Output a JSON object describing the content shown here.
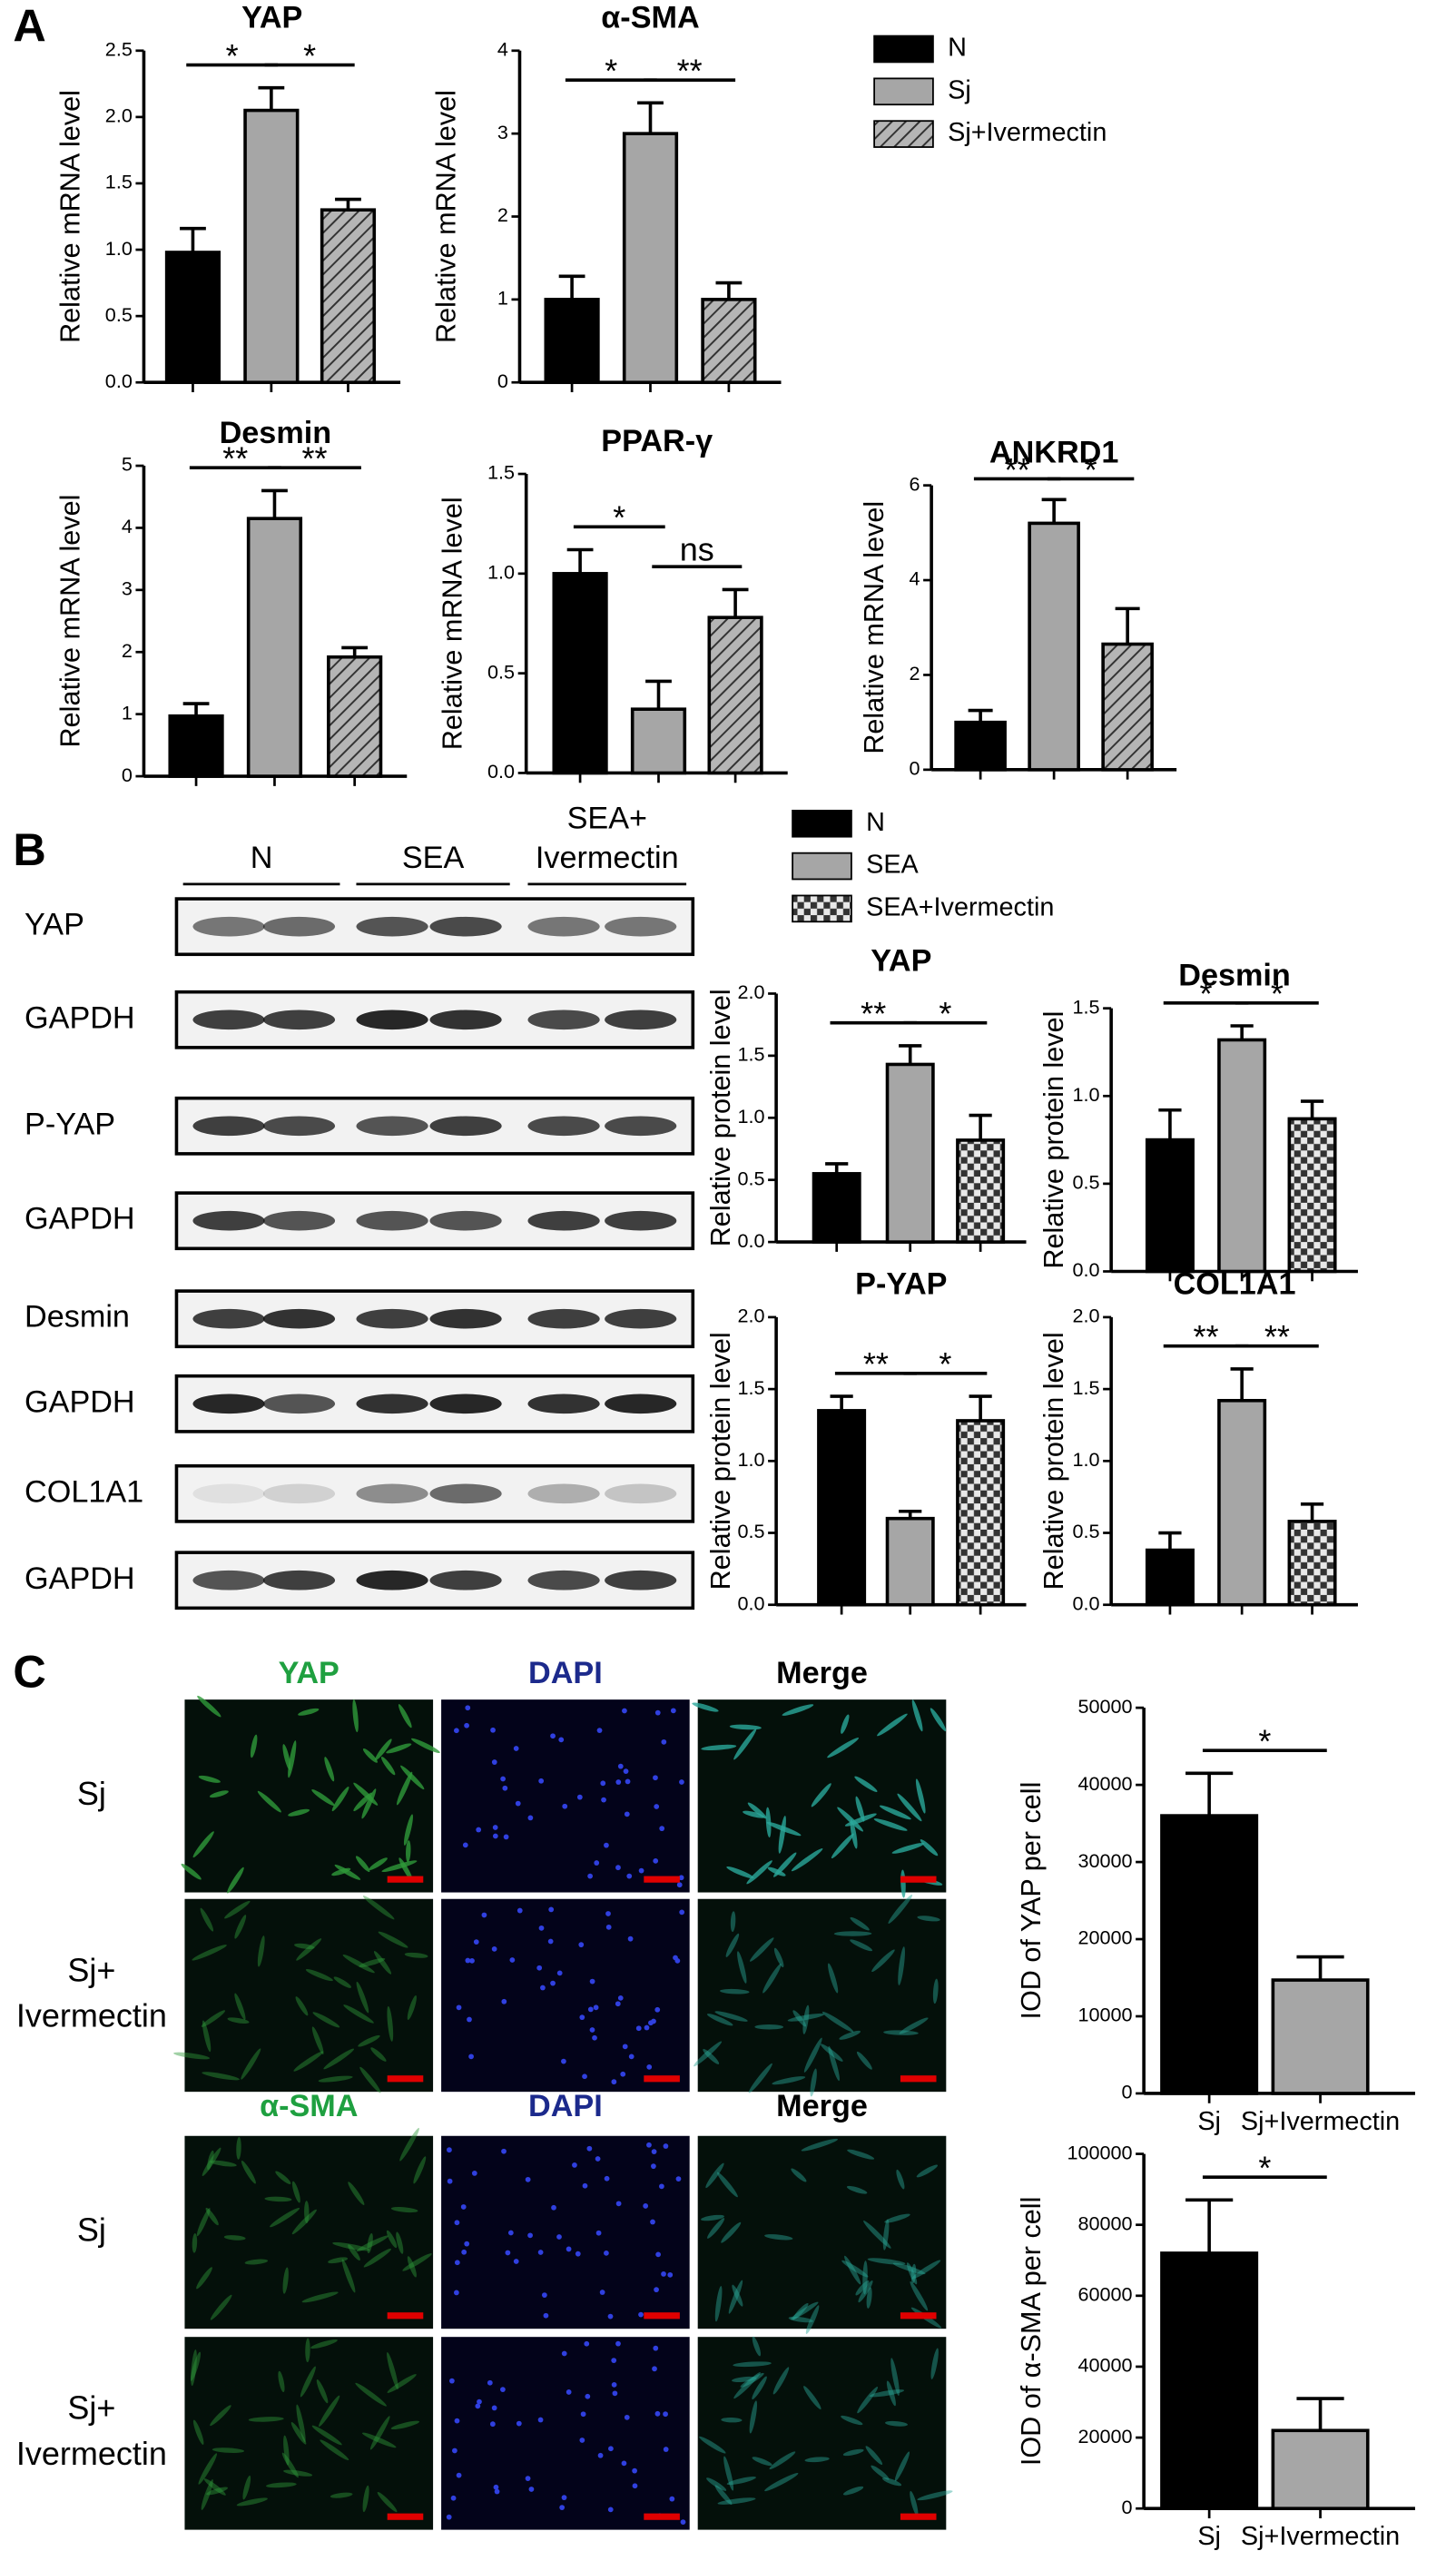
{
  "panel_labels": [
    "A",
    "B",
    "C"
  ],
  "legends": [
    {
      "items": [
        {
          "name": "N",
          "fill": "#000000"
        },
        {
          "name": "Sj",
          "fill": "#a6a6a6"
        },
        {
          "name": "Sj+Ivermectin",
          "fill": "hatch"
        }
      ]
    },
    {
      "items": [
        {
          "name": "N",
          "fill": "#000000"
        },
        {
          "name": "SEA",
          "fill": "#a6a6a6"
        },
        {
          "name": "SEA+Ivermectin",
          "fill": "checker"
        }
      ]
    }
  ],
  "blot": {
    "groups": [
      [
        "N"
      ],
      [
        "SEA"
      ],
      [
        "SEA+",
        "Ivermectin"
      ]
    ],
    "rows": [
      "YAP",
      "GAPDH",
      "P-YAP",
      "GAPDH",
      "Desmin",
      "GAPDH",
      "COL1A1",
      "GAPDH"
    ]
  },
  "microscopy": [
    {
      "headers": [
        "YAP",
        "DAPI",
        "Merge"
      ],
      "rows": [
        [
          "Sj"
        ],
        [
          "Sj+",
          "Ivermectin"
        ]
      ]
    },
    {
      "headers": [
        "α-SMA",
        "DAPI",
        "Merge"
      ],
      "rows": [
        [
          "Sj"
        ],
        [
          "Sj+",
          "Ivermectin"
        ]
      ]
    }
  ],
  "chart_data": [
    {
      "type": "bar",
      "title": "YAP",
      "ylabel": "Relative mRNA level",
      "categories": [
        null,
        null,
        null
      ],
      "values": [
        0.98,
        2.05,
        1.3
      ],
      "errors": [
        0.18,
        0.17,
        0.08
      ],
      "fills": [
        "#000000",
        "#a6a6a6",
        "hatch"
      ],
      "ylim": [
        0,
        2.5
      ],
      "yticks": [
        {
          "value": 0,
          "label": "0.0"
        },
        0.5,
        {
          "value": 1,
          "label": "1.0"
        },
        1.5,
        {
          "value": 2,
          "label": "2.0"
        },
        2.5
      ],
      "annotations": [
        {
          "text": "*",
          "between": [
            0,
            1
          ]
        },
        {
          "text": "*",
          "between": [
            1,
            2
          ]
        }
      ]
    },
    {
      "type": "bar",
      "title": "α-SMA",
      "ylabel": "Relative mRNA level",
      "categories": [
        null,
        null,
        null
      ],
      "values": [
        1.0,
        3.0,
        1.0
      ],
      "errors": [
        0.28,
        0.37,
        0.2
      ],
      "fills": [
        "#000000",
        "#a6a6a6",
        "hatch"
      ],
      "ylim": [
        0,
        4
      ],
      "yticks": [
        0,
        1,
        2,
        3,
        4
      ],
      "annotations": [
        {
          "text": "*",
          "between": [
            0,
            1
          ]
        },
        {
          "text": "**",
          "between": [
            1,
            2
          ]
        }
      ]
    },
    {
      "type": "bar",
      "title": "Desmin",
      "ylabel": "Relative mRNA level",
      "categories": [
        null,
        null,
        null
      ],
      "values": [
        0.97,
        4.15,
        1.92
      ],
      "errors": [
        0.2,
        0.45,
        0.15
      ],
      "fills": [
        "#000000",
        "#a6a6a6",
        "hatch"
      ],
      "ylim": [
        0,
        5
      ],
      "yticks": [
        0,
        1,
        2,
        3,
        4,
        5
      ],
      "annotations": [
        {
          "text": "**",
          "between": [
            0,
            1
          ]
        },
        {
          "text": "**",
          "between": [
            1,
            2
          ]
        }
      ]
    },
    {
      "type": "bar",
      "title": "PPAR-γ",
      "ylabel": "Relative mRNA level",
      "categories": [
        null,
        null,
        null
      ],
      "values": [
        1.0,
        0.32,
        0.78
      ],
      "errors": [
        0.12,
        0.14,
        0.14
      ],
      "fills": [
        "#000000",
        "#a6a6a6",
        "hatch"
      ],
      "ylim": [
        0,
        1.5
      ],
      "yticks": [
        {
          "value": 0,
          "label": "0.0"
        },
        0.5,
        {
          "value": 1,
          "label": "1.0"
        },
        1.5
      ],
      "annotations": [
        {
          "text": "*",
          "between": [
            0,
            1
          ]
        },
        {
          "text": "ns",
          "between": [
            1,
            2
          ]
        }
      ]
    },
    {
      "type": "bar",
      "title": "ANKRD1",
      "ylabel": "Relative mRNA level",
      "categories": [
        null,
        null,
        null
      ],
      "values": [
        1.0,
        5.2,
        2.65
      ],
      "errors": [
        0.25,
        0.5,
        0.75
      ],
      "fills": [
        "#000000",
        "#a6a6a6",
        "hatch"
      ],
      "ylim": [
        0,
        6
      ],
      "yticks": [
        0,
        2,
        4,
        6
      ],
      "annotations": [
        {
          "text": "**",
          "between": [
            0,
            1
          ]
        },
        {
          "text": "*",
          "between": [
            1,
            2
          ]
        }
      ]
    },
    {
      "type": "bar",
      "title": "YAP",
      "ylabel": "Relative protein level",
      "categories": [
        null,
        null,
        null
      ],
      "values": [
        0.55,
        1.43,
        0.82
      ],
      "errors": [
        0.08,
        0.15,
        0.2
      ],
      "fills": [
        "#000000",
        "#a6a6a6",
        "checker"
      ],
      "ylim": [
        0,
        2
      ],
      "yticks": [
        {
          "value": 0,
          "label": "0.0"
        },
        0.5,
        {
          "value": 1,
          "label": "1.0"
        },
        1.5,
        {
          "value": 2,
          "label": "2.0"
        }
      ],
      "annotations": [
        {
          "text": "**",
          "between": [
            0,
            1
          ]
        },
        {
          "text": "*",
          "between": [
            1,
            2
          ]
        }
      ]
    },
    {
      "type": "bar",
      "title": "Desmin",
      "ylabel": "Relative protein level",
      "categories": [
        null,
        null,
        null
      ],
      "values": [
        0.75,
        1.32,
        0.87
      ],
      "errors": [
        0.17,
        0.08,
        0.1
      ],
      "fills": [
        "#000000",
        "#a6a6a6",
        "checker"
      ],
      "ylim": [
        0,
        1.5
      ],
      "yticks": [
        {
          "value": 0,
          "label": "0.0"
        },
        0.5,
        {
          "value": 1,
          "label": "1.0"
        },
        1.5
      ],
      "annotations": [
        {
          "text": "*",
          "between": [
            0,
            1
          ]
        },
        {
          "text": "*",
          "between": [
            1,
            2
          ]
        }
      ]
    },
    {
      "type": "bar",
      "title": "P-YAP",
      "ylabel": "Relative protein level",
      "categories": [
        null,
        null,
        null
      ],
      "values": [
        1.35,
        0.6,
        1.28
      ],
      "errors": [
        0.1,
        0.05,
        0.17
      ],
      "fills": [
        "#000000",
        "#a6a6a6",
        "checker"
      ],
      "ylim": [
        0,
        2
      ],
      "yticks": [
        {
          "value": 0,
          "label": "0.0"
        },
        0.5,
        {
          "value": 1,
          "label": "1.0"
        },
        1.5,
        {
          "value": 2,
          "label": "2.0"
        }
      ],
      "annotations": [
        {
          "text": "**",
          "between": [
            0,
            1
          ]
        },
        {
          "text": "*",
          "between": [
            1,
            2
          ]
        }
      ]
    },
    {
      "type": "bar",
      "title": "COL1A1",
      "ylabel": "Relative protein level",
      "categories": [
        null,
        null,
        null
      ],
      "values": [
        0.38,
        1.42,
        0.58
      ],
      "errors": [
        0.12,
        0.22,
        0.12
      ],
      "fills": [
        "#000000",
        "#a6a6a6",
        "checker"
      ],
      "ylim": [
        0,
        2
      ],
      "yticks": [
        {
          "value": 0,
          "label": "0.0"
        },
        0.5,
        {
          "value": 1,
          "label": "1.0"
        },
        1.5,
        {
          "value": 2,
          "label": "2.0"
        }
      ],
      "annotations": [
        {
          "text": "**",
          "between": [
            0,
            1
          ]
        },
        {
          "text": "**",
          "between": [
            1,
            2
          ]
        }
      ]
    },
    {
      "type": "bar",
      "ylabel": "IOD of YAP per cell",
      "categories": [
        "Sj",
        "Sj+Ivermectin"
      ],
      "values": [
        36000,
        14700
      ],
      "errors": [
        5500,
        3000
      ],
      "fills": [
        "#000000",
        "#a6a6a6"
      ],
      "ylim": [
        0,
        50000
      ],
      "yticks": [
        0,
        10000,
        20000,
        30000,
        40000,
        50000
      ],
      "annotations": [
        {
          "text": "*",
          "between": [
            0,
            1
          ]
        }
      ]
    },
    {
      "type": "bar",
      "ylabel": "IOD of α-SMA per cell",
      "categories": [
        "Sj",
        "Sj+Ivermectin"
      ],
      "values": [
        72000,
        22000
      ],
      "errors": [
        15000,
        9000
      ],
      "fills": [
        "#000000",
        "#a6a6a6"
      ],
      "ylim": [
        0,
        100000
      ],
      "yticks": [
        0,
        20000,
        40000,
        60000,
        80000,
        100000
      ],
      "annotations": [
        {
          "text": "*",
          "between": [
            0,
            1
          ]
        }
      ]
    }
  ]
}
